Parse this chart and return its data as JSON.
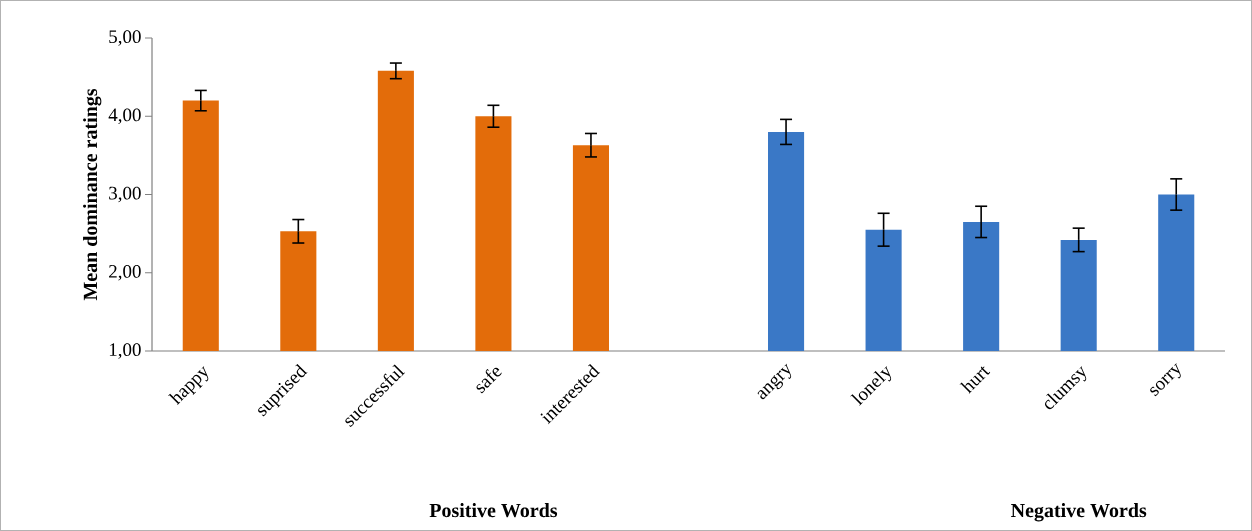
{
  "chart_data": {
    "type": "bar",
    "ylabel": "Mean dominance ratings",
    "categories": [
      "happy",
      "suprised",
      "successful",
      "safe",
      "interested",
      null,
      "angry",
      "lonely",
      "hurt",
      "clumsy",
      "sorry"
    ],
    "values": [
      4.2,
      2.53,
      4.58,
      4.0,
      3.63,
      null,
      3.8,
      2.55,
      2.65,
      2.42,
      3.0
    ],
    "errors": [
      0.13,
      0.15,
      0.1,
      0.14,
      0.15,
      null,
      0.16,
      0.21,
      0.2,
      0.15,
      0.2
    ],
    "colors": [
      "#e36c0a",
      "#e36c0a",
      "#e36c0a",
      "#e36c0a",
      "#e36c0a",
      null,
      "#3a78c6",
      "#3a78c6",
      "#3a78c6",
      "#3a78c6",
      "#3a78c6"
    ],
    "ylim": [
      1,
      5
    ],
    "yticks": [
      {
        "value": 1,
        "label": "1,00"
      },
      {
        "value": 2,
        "label": "2,00"
      },
      {
        "value": 3,
        "label": "3,00"
      },
      {
        "value": 4,
        "label": "4,00"
      },
      {
        "value": 5,
        "label": "5,00"
      }
    ],
    "annotations": [
      "Positive Words",
      "Negative Words"
    ],
    "grid": false
  }
}
